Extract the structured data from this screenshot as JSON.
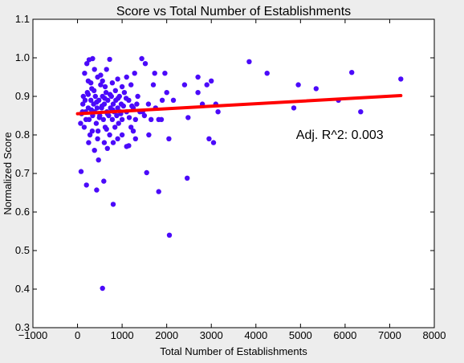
{
  "chart_data": {
    "type": "scatter",
    "title": "Score vs Total Number of Establishments",
    "xlabel": "Total Number of Establishments",
    "ylabel": "Normalized Score",
    "xlim": [
      -1000,
      8000
    ],
    "ylim": [
      0.3,
      1.1
    ],
    "xticks": [
      -1000,
      0,
      1000,
      2000,
      3000,
      4000,
      5000,
      6000,
      7000,
      8000
    ],
    "yticks": [
      0.3,
      0.4,
      0.5,
      0.6,
      0.7,
      0.8,
      0.9,
      1.0,
      1.1
    ],
    "xtick_labels": [
      "−1000",
      "0",
      "1000",
      "2000",
      "3000",
      "4000",
      "5000",
      "6000",
      "7000",
      "8000"
    ],
    "ytick_labels": [
      "0.3",
      "0.4",
      "0.5",
      "0.6",
      "0.7",
      "0.8",
      "0.9",
      "1.0",
      "1.1"
    ],
    "grid": false,
    "colors": {
      "points": "#4b0afa",
      "fit_line": "#ff0000",
      "plot_bg": "#ffffff",
      "figure_bg": "#ededed"
    },
    "annotation": {
      "text": "Adj. R^2: 0.003",
      "x": 4900,
      "y": 0.8
    },
    "fit_line": {
      "x": [
        0,
        7250
      ],
      "y": [
        0.855,
        0.902
      ]
    },
    "points": [
      [
        80,
        0.705
      ],
      [
        200,
        0.67
      ],
      [
        430,
        0.657
      ],
      [
        560,
        0.402
      ],
      [
        800,
        0.62
      ],
      [
        590,
        0.68
      ],
      [
        470,
        0.735
      ],
      [
        670,
        0.765
      ],
      [
        1150,
        0.772
      ],
      [
        1550,
        0.702
      ],
      [
        1820,
        0.653
      ],
      [
        2060,
        0.54
      ],
      [
        2460,
        0.688
      ],
      [
        90,
        0.855
      ],
      [
        70,
        0.83
      ],
      [
        120,
        0.88
      ],
      [
        150,
        0.82
      ],
      [
        180,
        0.86
      ],
      [
        220,
        0.91
      ],
      [
        240,
        0.87
      ],
      [
        260,
        0.84
      ],
      [
        280,
        0.8
      ],
      [
        300,
        0.89
      ],
      [
        320,
        0.92
      ],
      [
        340,
        0.85
      ],
      [
        360,
        0.88
      ],
      [
        380,
        0.86
      ],
      [
        400,
        0.9
      ],
      [
        420,
        0.83
      ],
      [
        440,
        0.87
      ],
      [
        460,
        0.81
      ],
      [
        480,
        0.89
      ],
      [
        500,
        0.85
      ],
      [
        520,
        0.93
      ],
      [
        540,
        0.87
      ],
      [
        560,
        0.9
      ],
      [
        580,
        0.84
      ],
      [
        600,
        0.88
      ],
      [
        620,
        0.82
      ],
      [
        640,
        0.91
      ],
      [
        660,
        0.86
      ],
      [
        680,
        0.89
      ],
      [
        700,
        0.85
      ],
      [
        720,
        0.8
      ],
      [
        740,
        0.87
      ],
      [
        760,
        0.9
      ],
      [
        780,
        0.84
      ],
      [
        800,
        0.88
      ],
      [
        820,
        0.86
      ],
      [
        840,
        0.82
      ],
      [
        860,
        0.89
      ],
      [
        880,
        0.85
      ],
      [
        900,
        0.87
      ],
      [
        920,
        0.83
      ],
      [
        940,
        0.9
      ],
      [
        960,
        0.86
      ],
      [
        980,
        0.88
      ],
      [
        1000,
        0.84
      ],
      [
        1050,
        0.91
      ],
      [
        1100,
        0.86
      ],
      [
        1150,
        0.89
      ],
      [
        1200,
        0.82
      ],
      [
        1250,
        0.87
      ],
      [
        1300,
        0.84
      ],
      [
        1350,
        0.9
      ],
      [
        1400,
        0.86
      ],
      [
        210,
        0.985
      ],
      [
        260,
        0.995
      ],
      [
        340,
        0.998
      ],
      [
        380,
        0.97
      ],
      [
        450,
        0.95
      ],
      [
        520,
        0.955
      ],
      [
        560,
        0.94
      ],
      [
        650,
        0.97
      ],
      [
        720,
        0.996
      ],
      [
        900,
        0.945
      ],
      [
        1100,
        0.95
      ],
      [
        1280,
        0.96
      ],
      [
        1440,
        0.998
      ],
      [
        1520,
        0.985
      ],
      [
        1730,
        0.96
      ],
      [
        1960,
        0.96
      ],
      [
        160,
        0.96
      ],
      [
        240,
        0.94
      ],
      [
        300,
        0.935
      ],
      [
        620,
        0.925
      ],
      [
        780,
        0.935
      ],
      [
        1000,
        0.925
      ],
      [
        1200,
        0.93
      ],
      [
        1700,
        0.93
      ],
      [
        1900,
        0.89
      ],
      [
        2000,
        0.91
      ],
      [
        2150,
        0.89
      ],
      [
        2400,
        0.93
      ],
      [
        2700,
        0.95
      ],
      [
        2900,
        0.93
      ],
      [
        3000,
        0.94
      ],
      [
        2800,
        0.88
      ],
      [
        3100,
        0.88
      ],
      [
        2700,
        0.91
      ],
      [
        2480,
        0.845
      ],
      [
        3150,
        0.86
      ],
      [
        2950,
        0.79
      ],
      [
        3050,
        0.78
      ],
      [
        3850,
        0.99
      ],
      [
        4250,
        0.96
      ],
      [
        4950,
        0.93
      ],
      [
        5350,
        0.92
      ],
      [
        6150,
        0.962
      ],
      [
        4850,
        0.87
      ],
      [
        5850,
        0.89
      ],
      [
        6350,
        0.86
      ],
      [
        7250,
        0.945
      ],
      [
        250,
        0.78
      ],
      [
        380,
        0.76
      ],
      [
        600,
        0.78
      ],
      [
        900,
        0.79
      ],
      [
        1100,
        0.77
      ],
      [
        1300,
        0.79
      ],
      [
        1600,
        0.8
      ],
      [
        1820,
        0.84
      ],
      [
        2050,
        0.79
      ],
      [
        1750,
        0.87
      ],
      [
        1500,
        0.85
      ],
      [
        1250,
        0.81
      ],
      [
        1000,
        0.8
      ],
      [
        800,
        0.78
      ],
      [
        650,
        0.815
      ],
      [
        450,
        0.79
      ],
      [
        330,
        0.81
      ],
      [
        190,
        0.84
      ],
      [
        130,
        0.9
      ],
      [
        110,
        0.86
      ],
      [
        170,
        0.89
      ],
      [
        240,
        0.905
      ],
      [
        310,
        0.865
      ],
      [
        370,
        0.915
      ],
      [
        430,
        0.885
      ],
      [
        490,
        0.845
      ],
      [
        550,
        0.875
      ],
      [
        610,
        0.895
      ],
      [
        670,
        0.855
      ],
      [
        730,
        0.905
      ],
      [
        790,
        0.865
      ],
      [
        850,
        0.915
      ],
      [
        910,
        0.895
      ],
      [
        970,
        0.855
      ],
      [
        1030,
        0.875
      ],
      [
        1090,
        0.895
      ],
      [
        1160,
        0.845
      ],
      [
        1220,
        0.875
      ],
      [
        1330,
        0.88
      ],
      [
        1460,
        0.86
      ],
      [
        1590,
        0.88
      ],
      [
        1650,
        0.84
      ],
      [
        1880,
        0.84
      ]
    ]
  }
}
